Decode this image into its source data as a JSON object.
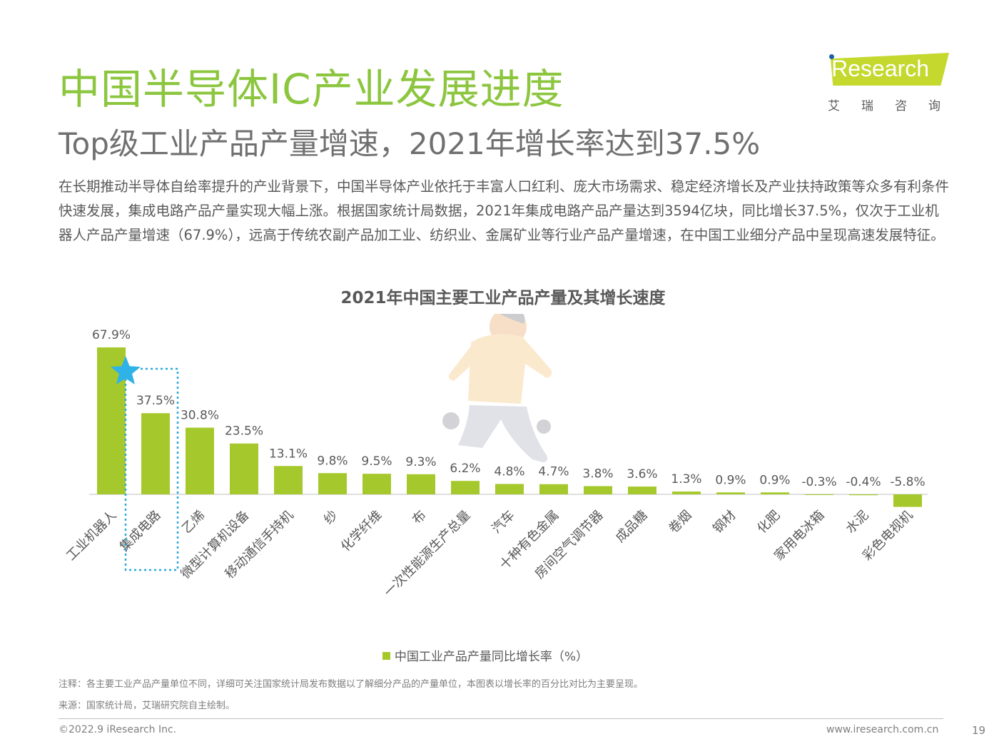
{
  "header": {
    "title": "中国半导体IC产业发展进度",
    "subtitle": "Top级工业产品产量增速，2021年增长率达到37.5%",
    "paragraph": "在长期推动半导体自给率提升的产业背景下，中国半导体产业依托于丰富人口红利、庞大市场需求、稳定经济增长及产业扶持政策等众多有利条件快速发展，集成电路产品产量实现大幅上涨。根据国家统计局数据，2021年集成电路产品产量达到3594亿块，同比增长37.5%，仅次于工业机器人产品产量增速（67.9%），远高于传统农副产品加工业、纺织业、金属矿业等行业产品产量增速，在中国工业细分产品中呈现高速发展特征。"
  },
  "logo": {
    "brand": "iResearch",
    "brand_cn": "艾瑞咨询"
  },
  "colors": {
    "accent": "#8cc63f",
    "bar": "#a5c92c",
    "highlight": "#29a9dc",
    "star": "#2fb2e8"
  },
  "chart_data": {
    "type": "bar",
    "title": "2021年中国主要工业产品产量及其增长速度",
    "categories": [
      "工业机器人",
      "集成电路",
      "乙烯",
      "微型计算机设备",
      "移动通信手持机",
      "纱",
      "化学纤维",
      "布",
      "一次性能源生产总量",
      "汽车",
      "十种有色金属",
      "房间空气调节器",
      "成品糖",
      "卷烟",
      "钢材",
      "化肥",
      "家用电冰箱",
      "水泥",
      "彩色电视机"
    ],
    "series": [
      {
        "name": "中国工业产品产量同比增长率（%）",
        "values": [
          67.9,
          37.5,
          30.8,
          23.5,
          13.1,
          9.8,
          9.5,
          9.3,
          6.2,
          4.8,
          4.7,
          3.8,
          3.6,
          1.3,
          0.9,
          0.9,
          -0.3,
          -0.4,
          -5.8
        ]
      }
    ],
    "value_labels": [
      "67.9%",
      "37.5%",
      "30.8%",
      "23.5%",
      "13.1%",
      "9.8%",
      "9.5%",
      "9.3%",
      "6.2%",
      "4.8%",
      "4.7%",
      "3.8%",
      "3.6%",
      "1.3%",
      "0.9%",
      "0.9%",
      "-0.3%",
      "-0.4%",
      "-5.8%"
    ],
    "legend": "中国工业产品产量同比增长率（%）",
    "highlight_category": "集成电路",
    "ylim": [
      -5.8,
      67.9
    ],
    "xlabel": "",
    "ylabel": ""
  },
  "notes": {
    "note": "注释：各主要工业产品产量单位不同，详细可关注国家统计局发布数据以了解细分产品的产量单位，本图表以增长率的百分比对比为主要呈现。",
    "source": "来源：国家统计局，艾瑞研究院自主绘制。"
  },
  "footer": {
    "copyright": "©2022.9 iResearch Inc.",
    "website": "www.iresearch.com.cn",
    "page": "19"
  }
}
